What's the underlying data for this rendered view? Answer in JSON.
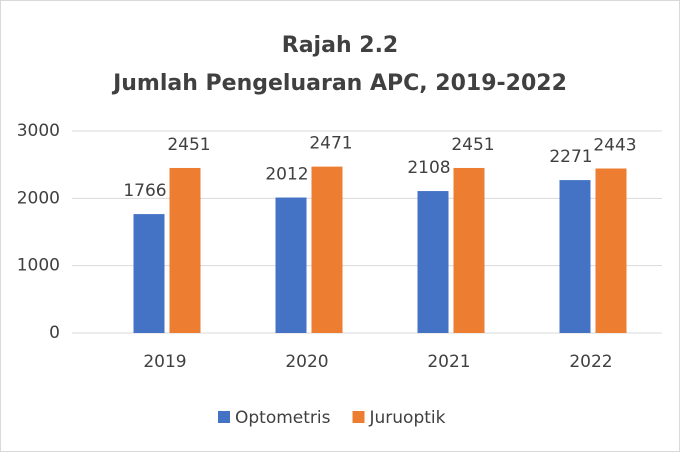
{
  "chart_data": {
    "type": "bar",
    "title": "Rajah 2.2",
    "subtitle": "Jumlah Pengeluaran APC, 2019-2022",
    "categories": [
      "2019",
      "2020",
      "2021",
      "2022"
    ],
    "series": [
      {
        "name": "Optometris",
        "color": "#4472c4",
        "values": [
          1766,
          2012,
          2108,
          2271
        ]
      },
      {
        "name": "Juruoptik",
        "color": "#ed7d31",
        "values": [
          2451,
          2471,
          2451,
          2443
        ]
      }
    ],
    "ylim": [
      0,
      3000
    ],
    "yticks": [
      0,
      1000,
      2000,
      3000
    ],
    "grid": true,
    "legend": "bottom"
  }
}
